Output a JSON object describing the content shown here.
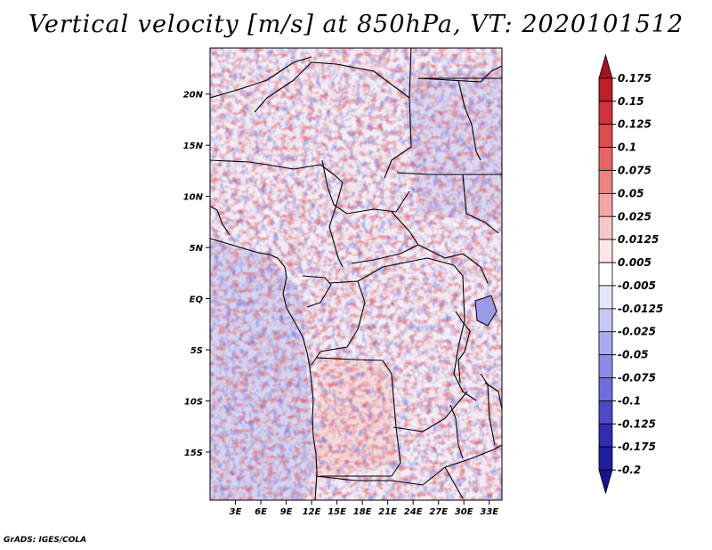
{
  "title": "Vertical velocity [m/s] at 850hPa, VT: 2020101512",
  "variable": "Vertical velocity",
  "units": "m/s",
  "level": "850hPa",
  "valid_time": "2020101512",
  "map": {
    "lon_ticks": [
      "3E",
      "6E",
      "9E",
      "12E",
      "15E",
      "18E",
      "21E",
      "24E",
      "27E",
      "30E",
      "33E"
    ],
    "lat_ticks": [
      "20N",
      "15N",
      "10N",
      "5N",
      "EQ",
      "5S",
      "10S",
      "15S"
    ],
    "lon_range": [
      0,
      34.5
    ],
    "lat_range": [
      -19.7,
      24.5
    ]
  },
  "colorbar": {
    "labels": [
      "0.175",
      "0.15",
      "0.125",
      "0.1",
      "0.075",
      "0.05",
      "0.025",
      "0.0125",
      "0.005",
      "-0.005",
      "-0.0125",
      "-0.025",
      "-0.05",
      "-0.075",
      "-0.1",
      "-0.125",
      "-0.175",
      "-0.2"
    ],
    "colors": [
      "#a0141e",
      "#be1e28",
      "#d2323c",
      "#e04b4b",
      "#e66464",
      "#ec8282",
      "#f4a5a5",
      "#f8c8c8",
      "#fde6e6",
      "#ffffff",
      "#e6e6fa",
      "#c8c8f4",
      "#aaaaee",
      "#8c8ce6",
      "#6e6edc",
      "#4b4bc8",
      "#2d2db4",
      "#1e1ea0",
      "#14148c"
    ]
  },
  "credit": "GrADS: IGES/COLA"
}
